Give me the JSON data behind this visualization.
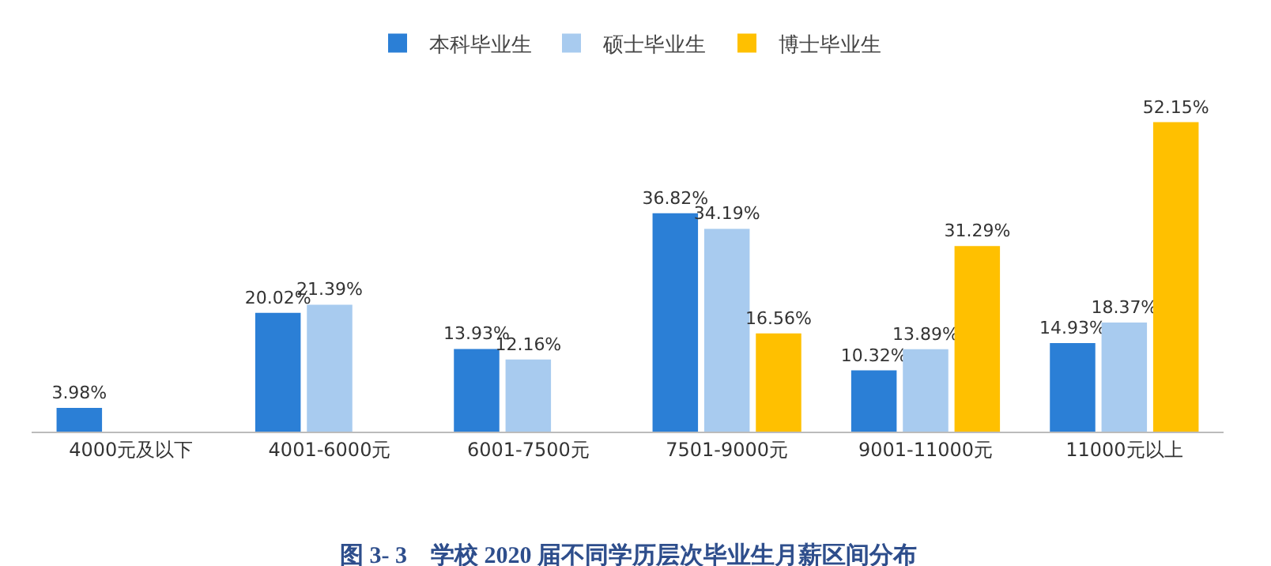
{
  "chart_data": {
    "type": "bar",
    "categories": [
      "4000元及以下",
      "4001-6000元",
      "6001-7500元",
      "7501-9000元",
      "9001-11000元",
      "11000元以上"
    ],
    "series": [
      {
        "name": "本科毕业生",
        "color": "#2b7fd6",
        "values": [
          3.98,
          20.02,
          13.93,
          36.82,
          10.32,
          14.93
        ],
        "value_labels": [
          "3.98%",
          "20.02%",
          "13.93%",
          "36.82%",
          "10.32%",
          "14.93%"
        ]
      },
      {
        "name": "硕士毕业生",
        "color": "#a8cbef",
        "values": [
          null,
          21.39,
          12.16,
          34.19,
          13.89,
          18.37
        ],
        "value_labels": [
          null,
          "21.39%",
          "12.16%",
          "34.19%",
          "13.89%",
          "18.37%"
        ]
      },
      {
        "name": "博士毕业生",
        "color": "#ffc000",
        "values": [
          null,
          null,
          null,
          16.56,
          31.29,
          52.15
        ],
        "value_labels": [
          null,
          null,
          null,
          "16.56%",
          "31.29%",
          "52.15%"
        ]
      }
    ],
    "grid": false,
    "legend": "top",
    "annotations": [
      "图 3- 3　学校 2020 届不同学历层次毕业生月薪区间分布"
    ]
  }
}
